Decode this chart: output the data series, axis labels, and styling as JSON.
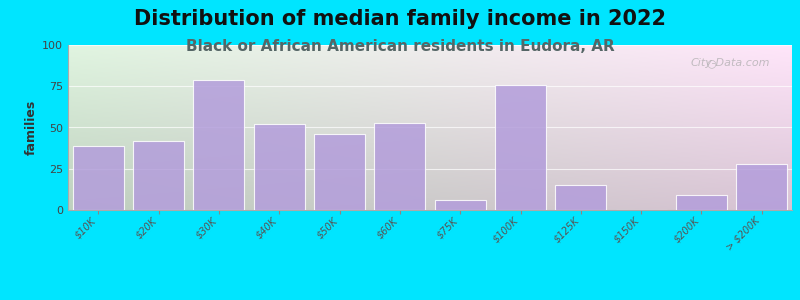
{
  "title": "Distribution of median family income in 2022",
  "subtitle": "Black or African American residents in Eudora, AR",
  "categories": [
    "$10K",
    "$20K",
    "$30K",
    "$40K",
    "$50K",
    "$60K",
    "$75K",
    "$100K",
    "$125K",
    "$150K",
    "$200K",
    "> $200K"
  ],
  "values": [
    39,
    42,
    79,
    52,
    46,
    53,
    6,
    76,
    15,
    0,
    9,
    28
  ],
  "bar_color": "#b39ddb",
  "bar_edge_color": "#b39ddb",
  "ylabel": "families",
  "ylim": [
    0,
    100
  ],
  "yticks": [
    0,
    25,
    50,
    75,
    100
  ],
  "background_color": "#00e5ff",
  "title_fontsize": 15,
  "subtitle_fontsize": 11,
  "subtitle_color": "#555555",
  "watermark_text": "City-Data.com"
}
